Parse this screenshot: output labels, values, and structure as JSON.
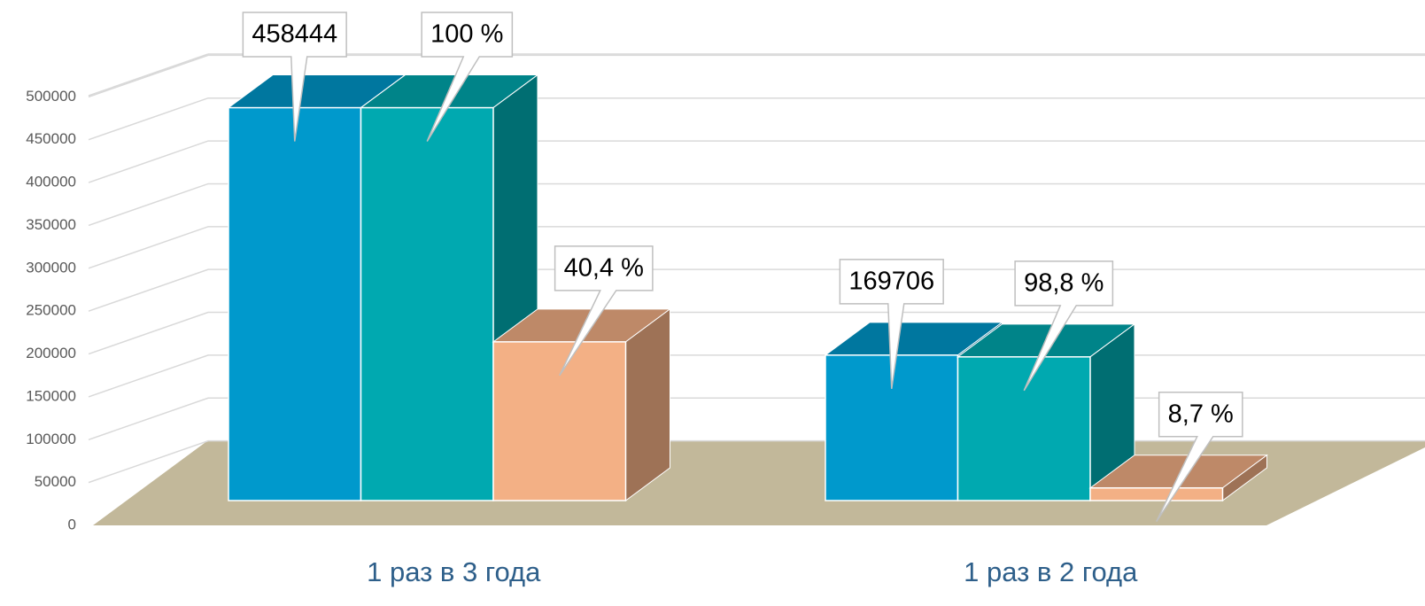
{
  "chart_data": {
    "type": "bar3d",
    "categories": [
      "1 раз в 3 года",
      "1 раз в 2 года"
    ],
    "series": [
      {
        "color": "#0099cc",
        "values": [
          458444,
          169706
        ],
        "value_labels": [
          "458444",
          "169706"
        ]
      },
      {
        "color": "#00a9b0",
        "values": [
          458444,
          167670
        ],
        "value_labels": [
          "100 %",
          "98,8 %"
        ]
      },
      {
        "color": "#f3b085",
        "values": [
          185211,
          14764
        ],
        "value_labels": [
          "40,4 %",
          "8,7 %"
        ]
      }
    ],
    "ylim": [
      0,
      550000
    ],
    "yticks": [
      0,
      50000,
      100000,
      150000,
      200000,
      250000,
      300000,
      350000,
      400000,
      450000,
      500000
    ],
    "grid": true
  }
}
